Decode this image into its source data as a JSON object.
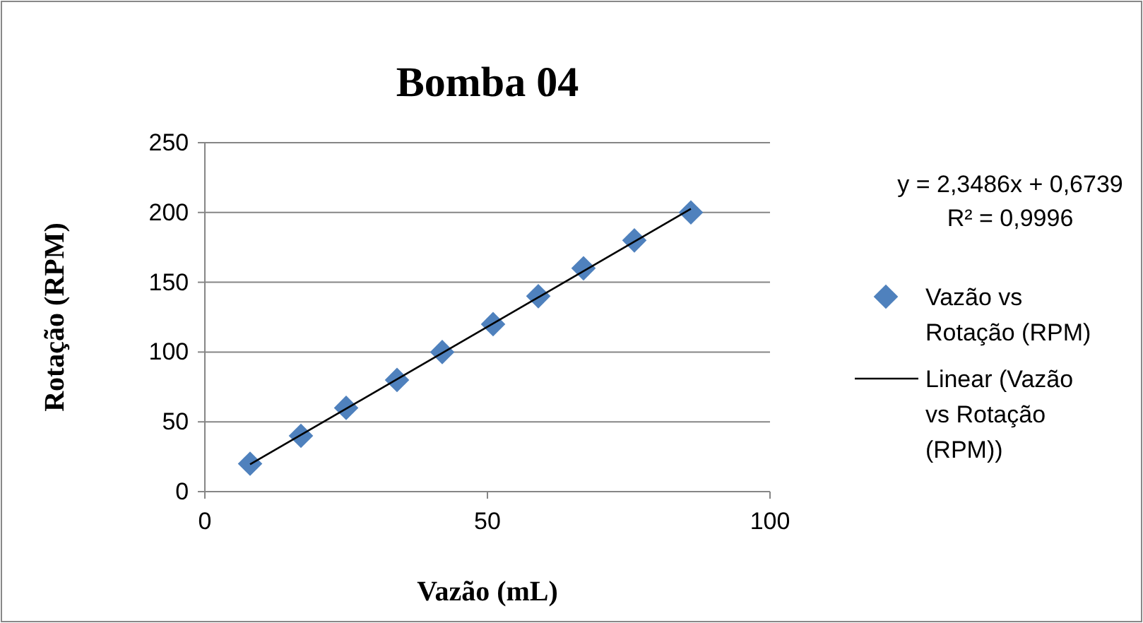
{
  "chart_data": {
    "type": "scatter",
    "title": "Bomba 04",
    "xlabel": "Vazão (mL)",
    "ylabel": "Rotação (RPM)",
    "xlim": [
      0,
      100
    ],
    "xticks": [
      0,
      50,
      100
    ],
    "ylim": [
      0,
      250
    ],
    "yticks": [
      0,
      50,
      100,
      150,
      200,
      250
    ],
    "grid": "y",
    "legend": "right",
    "annotations": [
      "y = 2,3486x + 0,6739",
      "R² = 0,9996"
    ],
    "series": [
      {
        "name": "Vazão vs Rotação (RPM)",
        "color": "#4f81bd",
        "marker": "diamond",
        "x": [
          8,
          17,
          25,
          34,
          42,
          51,
          59,
          67,
          76,
          86
        ],
        "values": [
          20,
          40,
          60,
          80,
          100,
          120,
          140,
          160,
          180,
          200
        ]
      },
      {
        "type": "line",
        "name": "Linear (Vazão vs Rotação (RPM))",
        "color": "#000000",
        "x": [
          8,
          86
        ],
        "values": [
          19.5,
          202.6
        ],
        "marker": "none"
      }
    ]
  }
}
